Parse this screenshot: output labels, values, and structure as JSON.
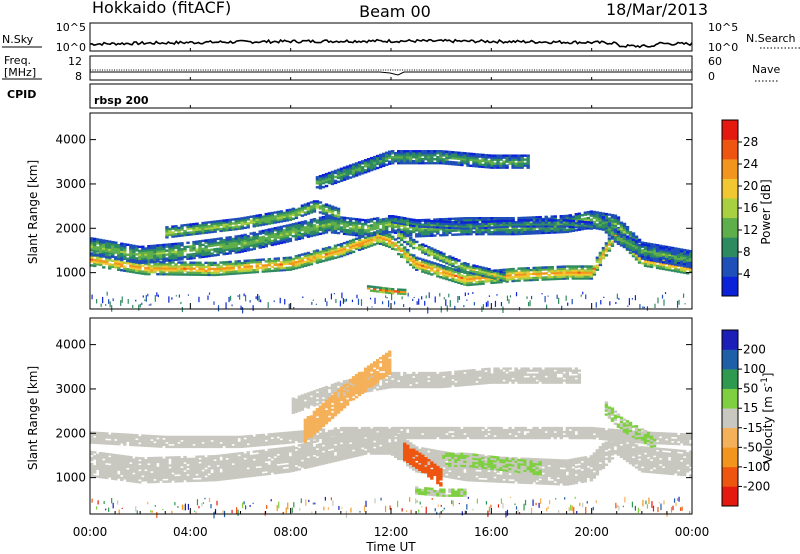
{
  "header": {
    "station": "Hokkaido (fitACF)",
    "beam": "Beam 00",
    "date": "18/Mar/2013"
  },
  "panels": {
    "nsky": {
      "left_label": "N.Sky",
      "left_ticks": [
        "10^5",
        "10^0"
      ],
      "right_label": "N.Search",
      "right_ticks": [
        "10^5",
        "10^0"
      ]
    },
    "freq": {
      "left_label_1": "Freq.",
      "left_label_2": "[MHz]",
      "left_ticks": [
        "12",
        "8"
      ],
      "right_label": "Nave",
      "right_ticks": [
        "60",
        "0"
      ]
    },
    "cpid": {
      "left_label": "CPID",
      "mode": "rbsp 200"
    }
  },
  "colors": {
    "power": [
      "#0b22d8",
      "#1f4fb8",
      "#2e8a60",
      "#5fae4c",
      "#a8d040",
      "#f2c832",
      "#f2951c",
      "#ee5510",
      "#e41a10"
    ],
    "velocity": [
      "#e41a10",
      "#ee5510",
      "#f2951c",
      "#f5b05a",
      "#c8c8c0",
      "#7fd040",
      "#2e9a50",
      "#1f5fa8",
      "#1b1fb8"
    ]
  },
  "chart_data": [
    {
      "type": "heatmap",
      "quantity": "power",
      "ylabel": "Slant Range [km]",
      "ylim": [
        180,
        4600
      ],
      "yticks": [
        "1000",
        "2000",
        "3000",
        "4000"
      ],
      "colorbar_label": "Power [dB]",
      "colorbar_ticks": [
        "28",
        "24",
        "20",
        "16",
        "12",
        "8",
        "4"
      ],
      "colorbar_range": [
        0,
        32
      ],
      "bands": [
        {
          "x": [
            0,
            2.2,
            5,
            8,
            10,
            11.5,
            12,
            13,
            15,
            17,
            19,
            20,
            21,
            22,
            24
          ],
          "y": [
            1300,
            1100,
            1080,
            1200,
            1500,
            1800,
            1700,
            1200,
            850,
            950,
            1000,
            1000,
            1900,
            1300,
            1100
          ],
          "width": 300,
          "value": 24
        },
        {
          "x": [
            0,
            2,
            4,
            6,
            8,
            9.5,
            11,
            12,
            13,
            15,
            17,
            19,
            20,
            21,
            22,
            24
          ],
          "y": [
            1600,
            1400,
            1500,
            1650,
            1900,
            2100,
            2000,
            2100,
            2000,
            2050,
            2050,
            2100,
            2200,
            2100,
            1500,
            1300
          ],
          "width": 400,
          "value": 14
        },
        {
          "x": [
            3,
            6,
            8,
            9,
            10
          ],
          "y": [
            1900,
            2100,
            2300,
            2500,
            2300
          ],
          "width": 250,
          "value": 16
        },
        {
          "x": [
            9,
            10.5,
            12,
            14,
            16,
            17.5
          ],
          "y": [
            3000,
            3300,
            3600,
            3600,
            3500,
            3500
          ],
          "width": 300,
          "value": 12
        },
        {
          "x": [
            12.2,
            13,
            15,
            16.5
          ],
          "y": [
            1900,
            1600,
            1100,
            900
          ],
          "width": 200,
          "value": 18
        },
        {
          "x": [
            12,
            13,
            15,
            17,
            19,
            20
          ],
          "y": [
            2200,
            2100,
            2050,
            2100,
            2100,
            2050
          ],
          "width": 150,
          "value": 10
        },
        {
          "x": [
            11,
            12,
            12.6
          ],
          "y": [
            650,
            580,
            560
          ],
          "width": 120,
          "value": 28
        },
        {
          "x": [
            20.3,
            21,
            22,
            23,
            24
          ],
          "y": [
            2200,
            1800,
            1500,
            1400,
            1300
          ],
          "width": 300,
          "value": 12
        }
      ]
    },
    {
      "type": "heatmap",
      "quantity": "velocity",
      "ylabel": "Slant Range [km]",
      "ylim": [
        180,
        4600
      ],
      "yticks": [
        "1000",
        "2000",
        "3000",
        "4000"
      ],
      "colorbar_label": "Velocity [m s^-1]",
      "colorbar_ticks": [
        "200",
        "100",
        "50",
        "15",
        "-15",
        "-50",
        "-100",
        "-200"
      ],
      "colorbar_range": [
        -250,
        250
      ],
      "bands": [
        {
          "x": [
            0,
            2,
            5,
            8,
            11,
            12,
            13,
            15,
            17,
            19,
            20,
            21,
            22,
            24
          ],
          "y": [
            1300,
            1150,
            1200,
            1400,
            1800,
            1800,
            1400,
            1200,
            1150,
            1100,
            1200,
            1800,
            1400,
            1300
          ],
          "width": 550,
          "value": 0
        },
        {
          "x": [
            0,
            3,
            6,
            8,
            10,
            12,
            14,
            16,
            18,
            20,
            22,
            24
          ],
          "y": [
            1900,
            1800,
            1800,
            1900,
            2000,
            2000,
            2000,
            2000,
            2000,
            2000,
            1900,
            1850
          ],
          "width": 250,
          "value": 0
        },
        {
          "x": [
            8,
            10,
            12,
            14,
            16,
            18,
            19.5
          ],
          "y": [
            2600,
            3000,
            3200,
            3200,
            3300,
            3300,
            3300
          ],
          "width": 350,
          "value": 0
        },
        {
          "x": [
            8.5,
            9.5,
            10.5,
            12
          ],
          "y": [
            2000,
            2500,
            3000,
            3600
          ],
          "width": 500,
          "value": -70
        },
        {
          "x": [
            12.5,
            13.3,
            14
          ],
          "y": [
            1600,
            1300,
            1000
          ],
          "width": 400,
          "value": -150
        },
        {
          "x": [
            14,
            15,
            16.5,
            18
          ],
          "y": [
            1400,
            1400,
            1300,
            1200
          ],
          "width": 300,
          "value": 30
        },
        {
          "x": [
            13,
            14,
            15
          ],
          "y": [
            700,
            650,
            650
          ],
          "width": 150,
          "value": 30
        },
        {
          "x": [
            20.5,
            21.2,
            22.5
          ],
          "y": [
            2600,
            2200,
            1800
          ],
          "width": 300,
          "value": 30
        }
      ]
    }
  ],
  "time_axis": {
    "label": "Time UT",
    "range_hours": [
      0,
      24
    ],
    "ticks": [
      "00:00",
      "04:00",
      "08:00",
      "12:00",
      "16:00",
      "20:00",
      "00:00"
    ]
  }
}
